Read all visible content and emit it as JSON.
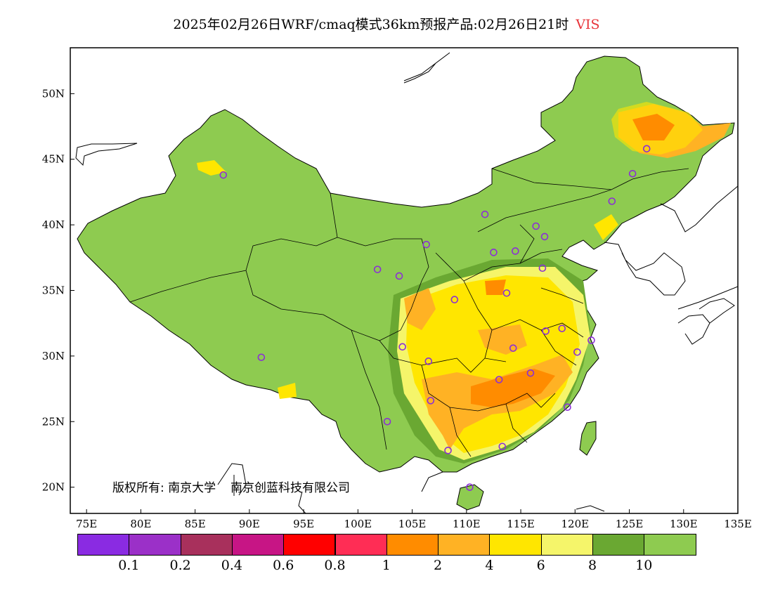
{
  "title": {
    "main": "2025年02月26日WRF/cmaq模式36km预报产品:02月26日21时",
    "variable": "VIS"
  },
  "map": {
    "lon_range": [
      73.5,
      135
    ],
    "lat_range": [
      18,
      53.5
    ],
    "lon_ticks": [
      {
        "value": 75,
        "label": "75E"
      },
      {
        "value": 80,
        "label": "80E"
      },
      {
        "value": 85,
        "label": "85E"
      },
      {
        "value": 90,
        "label": "90E"
      },
      {
        "value": 95,
        "label": "95E"
      },
      {
        "value": 100,
        "label": "100E"
      },
      {
        "value": 105,
        "label": "105E"
      },
      {
        "value": 110,
        "label": "110E"
      },
      {
        "value": 115,
        "label": "115E"
      },
      {
        "value": 120,
        "label": "120E"
      },
      {
        "value": 125,
        "label": "125E"
      },
      {
        "value": 130,
        "label": "130E"
      },
      {
        "value": 135,
        "label": "135E"
      }
    ],
    "lat_ticks": [
      {
        "value": 20,
        "label": "20N"
      },
      {
        "value": 25,
        "label": "25N"
      },
      {
        "value": 30,
        "label": "30N"
      },
      {
        "value": 35,
        "label": "35N"
      },
      {
        "value": 40,
        "label": "40N"
      },
      {
        "value": 45,
        "label": "45N"
      },
      {
        "value": 50,
        "label": "50N"
      }
    ],
    "land_color": "#8ecb50",
    "ocean_color": "#ffffff",
    "station_color": "#8b2fd6",
    "stations": [
      {
        "lon": 87.6,
        "lat": 43.8
      },
      {
        "lon": 91.1,
        "lat": 29.9
      },
      {
        "lon": 101.8,
        "lat": 36.6
      },
      {
        "lon": 103.8,
        "lat": 36.1
      },
      {
        "lon": 106.3,
        "lat": 38.5
      },
      {
        "lon": 111.7,
        "lat": 40.8
      },
      {
        "lon": 112.5,
        "lat": 37.9
      },
      {
        "lon": 114.5,
        "lat": 38.0
      },
      {
        "lon": 116.4,
        "lat": 39.9
      },
      {
        "lon": 117.2,
        "lat": 39.1
      },
      {
        "lon": 117.0,
        "lat": 36.7
      },
      {
        "lon": 113.7,
        "lat": 34.8
      },
      {
        "lon": 108.9,
        "lat": 34.3
      },
      {
        "lon": 104.1,
        "lat": 30.7
      },
      {
        "lon": 106.5,
        "lat": 29.6
      },
      {
        "lon": 114.3,
        "lat": 30.6
      },
      {
        "lon": 117.3,
        "lat": 31.9
      },
      {
        "lon": 118.8,
        "lat": 32.1
      },
      {
        "lon": 121.5,
        "lat": 31.2
      },
      {
        "lon": 120.2,
        "lat": 30.3
      },
      {
        "lon": 115.9,
        "lat": 28.7
      },
      {
        "lon": 113.0,
        "lat": 28.2
      },
      {
        "lon": 106.7,
        "lat": 26.6
      },
      {
        "lon": 102.7,
        "lat": 25.0
      },
      {
        "lon": 108.3,
        "lat": 22.8
      },
      {
        "lon": 113.3,
        "lat": 23.1
      },
      {
        "lon": 119.3,
        "lat": 26.1
      },
      {
        "lon": 110.3,
        "lat": 20.0
      },
      {
        "lon": 123.4,
        "lat": 41.8
      },
      {
        "lon": 125.3,
        "lat": 43.9
      },
      {
        "lon": 126.6,
        "lat": 45.8
      }
    ]
  },
  "copyright": {
    "prefix": "版权所有:",
    "org1": "南京大学",
    "org2": "南京创蓝科技有限公司"
  },
  "legend": {
    "colors": [
      "#8a2be2",
      "#9b30c8",
      "#a8305c",
      "#c71585",
      "#ff0000",
      "#ff2d55",
      "#ff8c00",
      "#ffb224",
      "#ffe600",
      "#f5f56a",
      "#6aa832",
      "#8ecb50"
    ],
    "labels": [
      "0.1",
      "0.2",
      "0.4",
      "0.6",
      "0.8",
      "1",
      "2",
      "4",
      "6",
      "8",
      "10"
    ]
  }
}
